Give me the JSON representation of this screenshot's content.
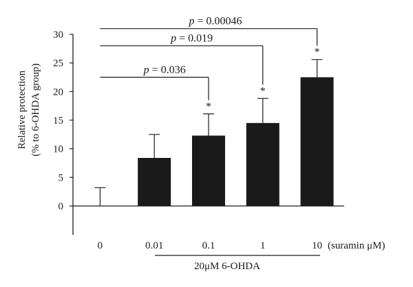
{
  "chart_data": {
    "type": "bar",
    "categories": [
      "0",
      "0.01",
      "0.1",
      "1",
      "10"
    ],
    "values": [
      0,
      8.4,
      12.3,
      14.5,
      22.5
    ],
    "errors": [
      3.2,
      4.1,
      3.8,
      4.3,
      3.1
    ],
    "significant": [
      false,
      false,
      true,
      true,
      true
    ],
    "significance_marker": "*",
    "ylabel_line1": "Relative protection",
    "ylabel_line2": "(% to 6-OHDA group)",
    "x_unit_label": "(suramin μM)",
    "group_label": "20μM 6-OHDA",
    "y_ticks": [
      0,
      5,
      10,
      15,
      20,
      25,
      30
    ],
    "ylim": [
      -5,
      30
    ],
    "comparisons": [
      {
        "from": 0,
        "to": 2,
        "p_prefix": "p",
        "p_text": " = 0.036"
      },
      {
        "from": 0,
        "to": 3,
        "p_prefix": "p",
        "p_text": " = 0.019"
      },
      {
        "from": 0,
        "to": 4,
        "p_prefix": "p",
        "p_text": " = 0.00046"
      }
    ],
    "colors": {
      "bar": "#1a1a1a",
      "axis": "#1a1a1a"
    }
  }
}
